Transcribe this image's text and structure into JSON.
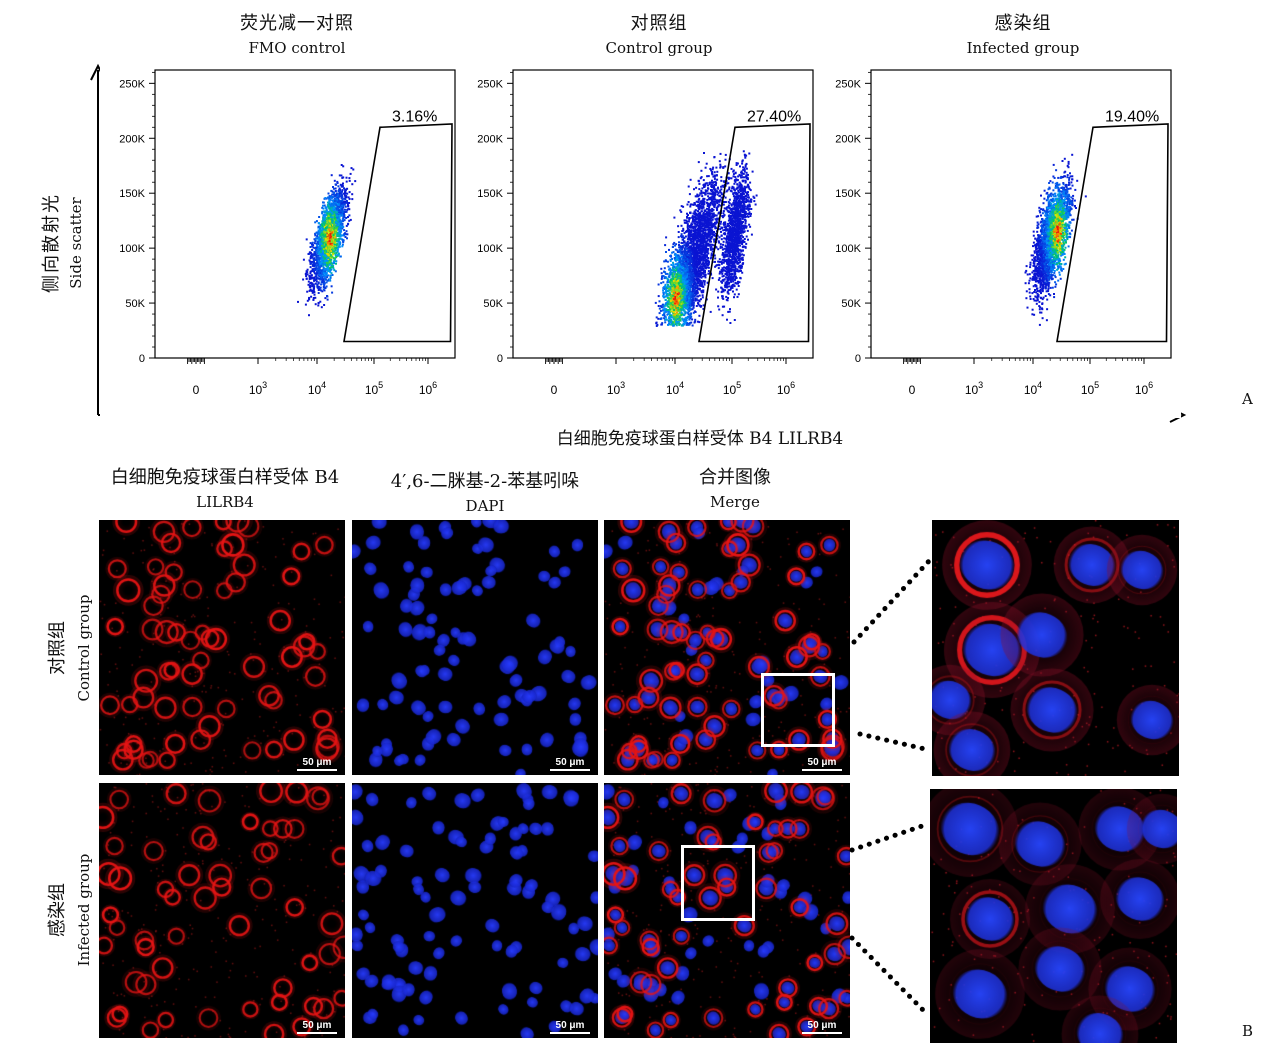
{
  "panel_a": {
    "letter": "A",
    "y_axis_zh": "侧向散射光",
    "y_axis_en": "Side scatter",
    "x_axis_label": "白细胞免疫球蛋白样受体 B4  LILRB4",
    "plots": [
      {
        "title_zh": "荧光减一对照",
        "title_en": "FMO  control",
        "gate_percent": "3.16%"
      },
      {
        "title_zh": "对照组",
        "title_en": "Control  group",
        "gate_percent": "27.40%"
      },
      {
        "title_zh": "感染组",
        "title_en": "Infected  group",
        "gate_percent": "19.40%"
      }
    ],
    "y_tick_labels": [
      "0",
      "50K",
      "100K",
      "150K",
      "200K",
      "250K"
    ],
    "x_tick_labels": [
      "0",
      "10",
      "10",
      "10",
      "10"
    ],
    "x_tick_exponents": [
      "",
      "3",
      "4",
      "5",
      "6"
    ]
  },
  "panel_b": {
    "letter": "B",
    "columns": [
      {
        "zh": "白细胞免疫球蛋白样受体 B4",
        "en": "LILRB4"
      },
      {
        "zh": "4′,6-二脒基-2-苯基吲哚",
        "en": "DAPI"
      },
      {
        "zh": "合并图像",
        "en": "Merge"
      }
    ],
    "rows": [
      {
        "zh": "对照组",
        "en": "Control  group"
      },
      {
        "zh": "感染组",
        "en": "Infected  group"
      }
    ],
    "scale_bar": "50 μm"
  },
  "chart_data": [
    {
      "type": "scatter",
      "title": "荧光减一对照 FMO control",
      "xlabel": "白细胞免疫球蛋白样受体 B4 LILRB4",
      "ylabel": "侧向散射光 Side scatter",
      "xscale": "biexponential",
      "ylim": [
        0,
        262144
      ],
      "yticks": [
        0,
        50000,
        100000,
        150000,
        200000,
        250000
      ],
      "gate_percent": 3.16
    },
    {
      "type": "scatter",
      "title": "对照组 Control group",
      "xlabel": "白细胞免疫球蛋白样受体 B4 LILRB4",
      "ylabel": "侧向散射光 Side scatter",
      "xscale": "biexponential",
      "ylim": [
        0,
        262144
      ],
      "yticks": [
        0,
        50000,
        100000,
        150000,
        200000,
        250000
      ],
      "gate_percent": 27.4
    },
    {
      "type": "scatter",
      "title": "感染组 Infected group",
      "xlabel": "白细胞免疫球蛋白样受体 B4 LILRB4",
      "ylabel": "侧向散射光 Side scatter",
      "xscale": "biexponential",
      "ylim": [
        0,
        262144
      ],
      "yticks": [
        0,
        50000,
        100000,
        150000,
        200000,
        250000
      ],
      "gate_percent": 19.4
    }
  ]
}
